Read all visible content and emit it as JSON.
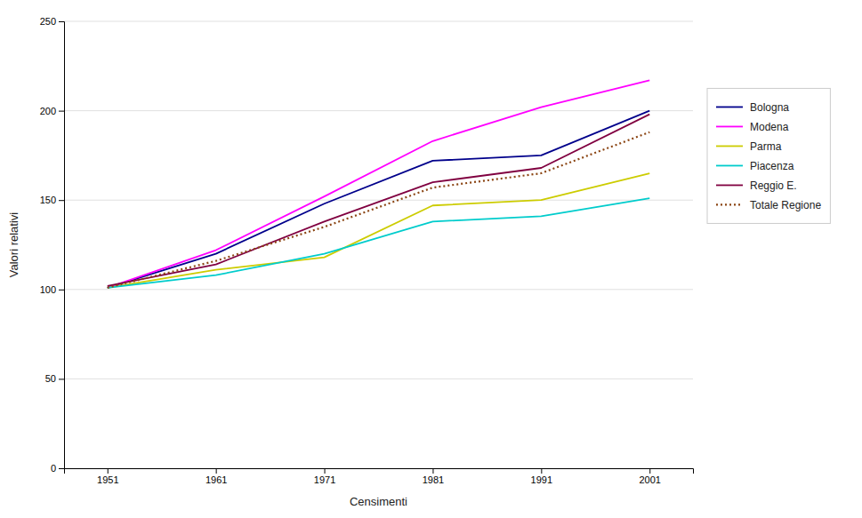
{
  "chart_data": {
    "type": "line",
    "x": [
      1951,
      1961,
      1971,
      1981,
      1991,
      2001
    ],
    "series": [
      {
        "name": "Bologna",
        "color": "#00008B",
        "line_style": "solid",
        "values": [
          101,
          120,
          148,
          172,
          175,
          200
        ]
      },
      {
        "name": "Modena",
        "color": "#FF00FF",
        "line_style": "solid",
        "values": [
          101,
          122,
          152,
          183,
          202,
          217
        ]
      },
      {
        "name": "Parma",
        "color": "#CCCC00",
        "line_style": "solid",
        "values": [
          101,
          111,
          118,
          147,
          150,
          165
        ]
      },
      {
        "name": "Piacenza",
        "color": "#00CCCC",
        "line_style": "solid",
        "values": [
          101,
          108,
          120,
          138,
          141,
          151
        ]
      },
      {
        "name": "Reggio E.",
        "color": "#800040",
        "line_style": "solid",
        "values": [
          102,
          114,
          138,
          160,
          168,
          198
        ]
      },
      {
        "name": "Totale Regione",
        "color": "#8B4513",
        "line_style": "dotted",
        "values": [
          101,
          116,
          135,
          157,
          165,
          188
        ]
      }
    ],
    "xlabel": "Censimenti",
    "ylabel": "Valori relativi",
    "xlim": [
      1947,
      2005
    ],
    "ylim": [
      0,
      250
    ],
    "xticks": [
      1951,
      1961,
      1971,
      1981,
      1991,
      2001
    ],
    "yticks": [
      0,
      50,
      100,
      150,
      200,
      250
    ],
    "grid": "y",
    "legend": "right"
  }
}
